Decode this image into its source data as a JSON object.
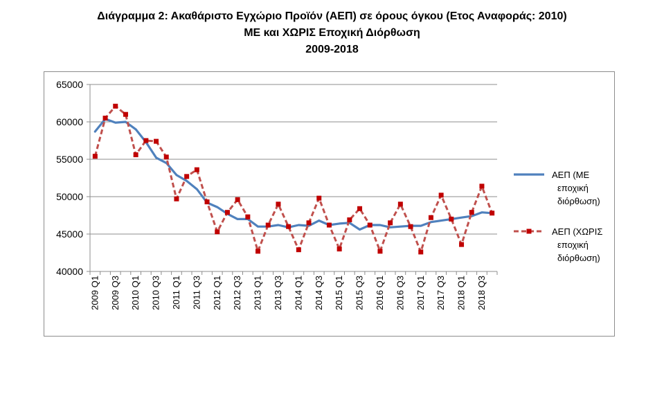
{
  "title": {
    "line1": "Διάγραμμα 2: Ακαθάριστο Εγχώριο Προϊόν (ΑΕΠ) σε όρους όγκου (Ετος Αναφοράς: 2010)",
    "line2": "ΜΕ και ΧΩΡΙΣ Εποχική Διόρθωση",
    "line3": "2009-2018"
  },
  "colors": {
    "seasonally_adjusted": "#4f81bd",
    "not_adjusted": "#c0504d",
    "marker": "#c00000",
    "grid": "#8c8c8c"
  },
  "chart_data": {
    "type": "line",
    "title": "Διάγραμμα 2: Ακαθάριστο Εγχώριο Προϊόν (ΑΕΠ) σε όρους όγκου (Ετος Αναφοράς: 2010) ΜΕ και ΧΩΡΙΣ Εποχική Διόρθωση 2009-2018",
    "xlabel": "",
    "ylabel": "",
    "ylim": [
      40000,
      65000
    ],
    "yticks": [
      "40000",
      "45000",
      "50000",
      "55000",
      "60000",
      "65000"
    ],
    "grid": true,
    "legend_position": "right",
    "categories": [
      "2009 Q1",
      "2009 Q2",
      "2009 Q3",
      "2009 Q4",
      "2010 Q1",
      "2010 Q2",
      "2010 Q3",
      "2010 Q4",
      "2011 Q1",
      "2011 Q2",
      "2011 Q3",
      "2011 Q4",
      "2012 Q1",
      "2012 Q2",
      "2012 Q3",
      "2012 Q4",
      "2013 Q1",
      "2013 Q2",
      "2013 Q3",
      "2013 Q4",
      "2014 Q1",
      "2014 Q2",
      "2014 Q3",
      "2014 Q4",
      "2015 Q1",
      "2015 Q2",
      "2015 Q3",
      "2015 Q4",
      "2016 Q1",
      "2016 Q2",
      "2016 Q3",
      "2016 Q4",
      "2017 Q1",
      "2017 Q2",
      "2017 Q3",
      "2017 Q4",
      "2018 Q1",
      "2018 Q2",
      "2018 Q3",
      "2018 Q4"
    ],
    "tick_labels": [
      "2009 Q1",
      "2009 Q3",
      "2010 Q1",
      "2010 Q3",
      "2011 Q1",
      "2011 Q3",
      "2012 Q1",
      "2012 Q3",
      "2013 Q1",
      "2013 Q3",
      "2014 Q1",
      "2014 Q3",
      "2015 Q1",
      "2015 Q3",
      "2016 Q1",
      "2016 Q3",
      "2017 Q1",
      "2017 Q3",
      "2018 Q1",
      "2018 Q3"
    ],
    "series": [
      {
        "name": "ΑΕΠ (ΜΕ εποχική διόρθωση)",
        "legend_lines": [
          "ΑΕΠ (ΜΕ",
          "εποχική",
          "διόρθωση)"
        ],
        "style": "solid",
        "values": [
          58700,
          60400,
          59900,
          60000,
          59000,
          57300,
          55200,
          54500,
          52900,
          52100,
          51000,
          49200,
          48600,
          47700,
          47000,
          47000,
          46000,
          46000,
          46200,
          45900,
          46200,
          46100,
          46800,
          46200,
          46400,
          46500,
          45600,
          46200,
          46200,
          45900,
          46000,
          46100,
          46100,
          46600,
          46800,
          47000,
          47200,
          47400,
          47900,
          47800
        ]
      },
      {
        "name": "ΑΕΠ (ΧΩΡΙΣ εποχική διόρθωση)",
        "legend_lines": [
          "ΑΕΠ (ΧΩΡΙΣ",
          "εποχική",
          "διόρθωση)"
        ],
        "style": "dashed-markers",
        "values": [
          55400,
          60500,
          62100,
          61000,
          55600,
          57500,
          57400,
          55300,
          49700,
          52700,
          53600,
          49300,
          45300,
          47900,
          49600,
          47300,
          42700,
          46200,
          49000,
          46000,
          42900,
          46500,
          49800,
          46200,
          43000,
          46900,
          48400,
          46200,
          42700,
          46500,
          49000,
          46000,
          42600,
          47200,
          50200,
          47000,
          43600,
          47900,
          51400,
          47800
        ]
      }
    ]
  }
}
